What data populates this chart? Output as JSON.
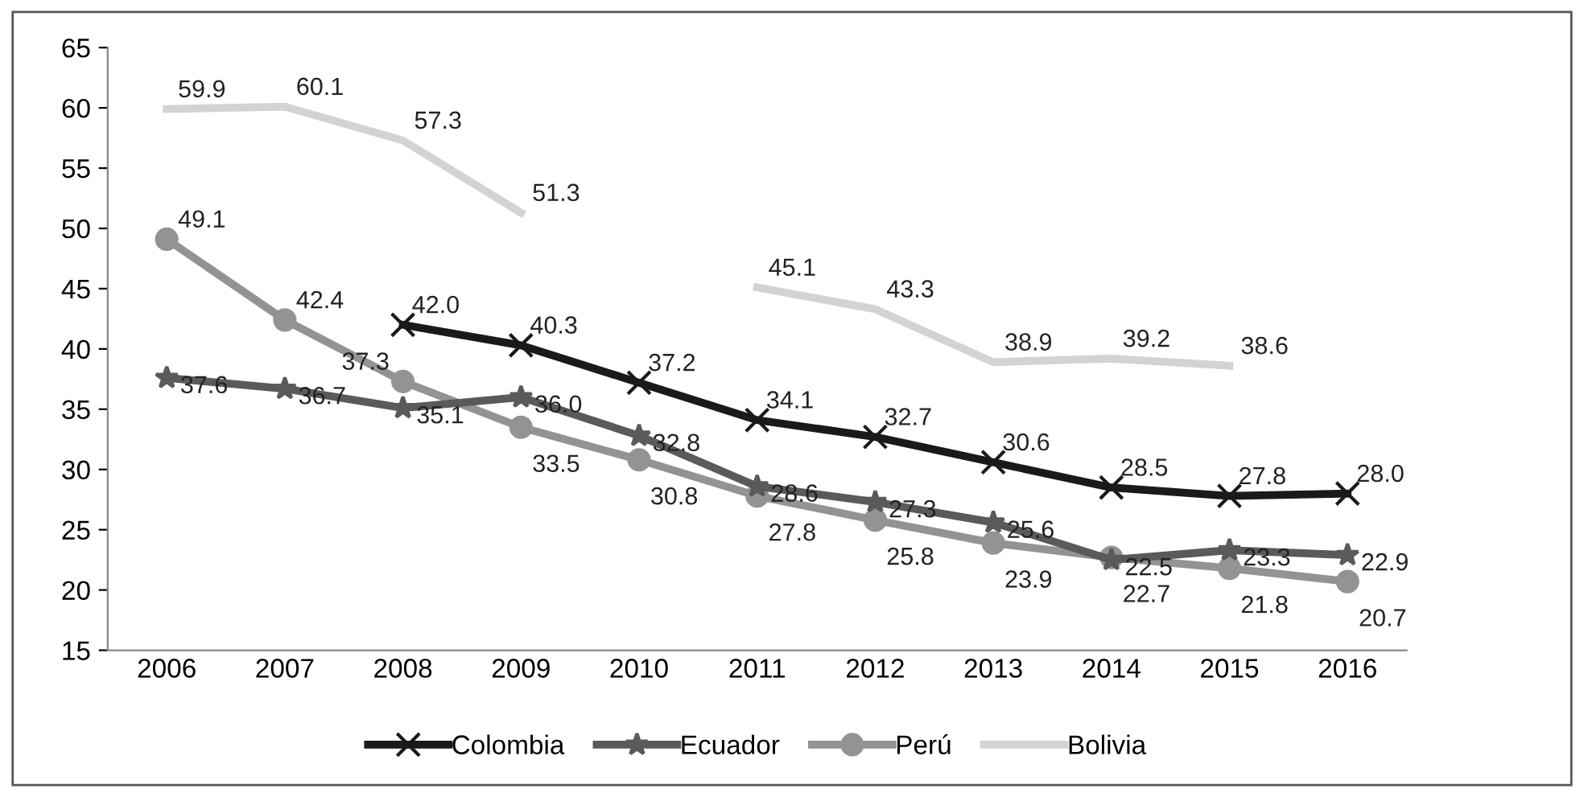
{
  "chart_data": {
    "type": "line",
    "categories": [
      "2006",
      "2007",
      "2008",
      "2009",
      "2010",
      "2011",
      "2012",
      "2013",
      "2014",
      "2015",
      "2016"
    ],
    "ylim": [
      15,
      65
    ],
    "yticks": [
      15,
      20,
      25,
      30,
      35,
      40,
      45,
      50,
      55,
      60,
      65
    ],
    "grid": false,
    "legend": "bottom",
    "data_labels": true,
    "series": [
      {
        "name": "Colombia",
        "color": "#1a1a1a",
        "marker": "cross",
        "values": [
          null,
          null,
          42.0,
          40.3,
          37.2,
          34.1,
          32.7,
          30.6,
          28.5,
          27.8,
          28.0
        ],
        "value_labels": [
          null,
          null,
          "42.0",
          "40.3",
          "37.2",
          "34.1",
          "32.7",
          "30.6",
          "28.5",
          "27.8",
          "28.0"
        ]
      },
      {
        "name": "Ecuador",
        "color": "#5a5a5a",
        "marker": "star",
        "values": [
          37.6,
          36.7,
          35.1,
          36.0,
          32.8,
          28.6,
          27.3,
          25.6,
          22.5,
          23.3,
          22.9
        ],
        "value_labels": [
          "37.6",
          "36.7",
          "35.1",
          "36.0",
          "32.8",
          "28.6",
          "27.3",
          "25.6",
          "22.5",
          "23.3",
          "22.9"
        ]
      },
      {
        "name": "Perú",
        "color": "#939393",
        "marker": "circle",
        "values": [
          49.1,
          42.4,
          37.3,
          33.5,
          30.8,
          27.8,
          25.8,
          23.9,
          22.7,
          21.8,
          20.7
        ]
      },
      {
        "name": "Bolivia",
        "color": "#d3d3d3",
        "marker": "none",
        "values": [
          59.9,
          60.1,
          57.3,
          51.3,
          null,
          45.1,
          43.3,
          38.9,
          39.2,
          38.6,
          null
        ]
      }
    ]
  }
}
